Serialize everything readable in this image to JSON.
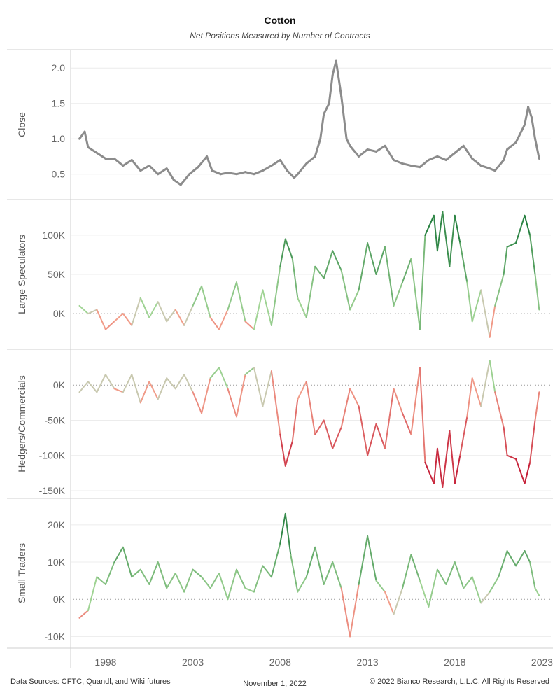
{
  "header": {
    "title": "Cotton",
    "subtitle": "Net Positions Measured by Number of Contracts"
  },
  "footer": {
    "sources": "Data Sources: CFTC, Quandl, and Wiki futures",
    "date": "November 1, 2022",
    "copyright": "© 2022 Bianco Research, L.L.C. All Rights Reserved"
  },
  "colors": {
    "close_line": "#8c8c8c",
    "positive_strong": "#1e7a3a",
    "positive_weak": "#a8d99a",
    "negative_weak": "#f4a58f",
    "negative_strong": "#c0102e",
    "neutral": "#c9c9b0",
    "grid": "#ececec",
    "zero_line": "#999999"
  },
  "chart_data": {
    "type": "line",
    "x_axis": {
      "tick_labels": [
        "1998",
        "2003",
        "2008",
        "2013",
        "2018",
        "2023"
      ],
      "range": [
        1996.0,
        2023.5
      ]
    },
    "panels": [
      {
        "ylabel": "Close",
        "ylim": [
          0.2,
          2.2
        ],
        "tick_labels": [
          "0.5",
          "1.0",
          "1.5",
          "2.0"
        ],
        "tick_values": [
          0.5,
          1.0,
          1.5,
          2.0
        ],
        "color_mode": "flat",
        "x": [
          1996.5,
          1996.8,
          1997.0,
          1997.5,
          1998.0,
          1998.5,
          1999.0,
          1999.5,
          2000.0,
          2000.5,
          2001.0,
          2001.5,
          2001.9,
          2002.3,
          2002.8,
          2003.3,
          2003.8,
          2004.1,
          2004.6,
          2005.0,
          2005.5,
          2006.0,
          2006.5,
          2007.0,
          2007.5,
          2008.0,
          2008.4,
          2008.8,
          2009.0,
          2009.5,
          2010.0,
          2010.3,
          2010.5,
          2010.8,
          2011.0,
          2011.2,
          2011.5,
          2011.8,
          2012.0,
          2012.5,
          2013.0,
          2013.5,
          2014.0,
          2014.5,
          2015.0,
          2015.5,
          2016.0,
          2016.5,
          2017.0,
          2017.5,
          2018.0,
          2018.5,
          2019.0,
          2019.5,
          2020.0,
          2020.3,
          2020.8,
          2021.0,
          2021.5,
          2022.0,
          2022.2,
          2022.4,
          2022.6,
          2022.83
        ],
        "values": [
          1.0,
          1.1,
          0.88,
          0.8,
          0.72,
          0.72,
          0.62,
          0.7,
          0.55,
          0.62,
          0.5,
          0.58,
          0.42,
          0.35,
          0.5,
          0.6,
          0.75,
          0.55,
          0.5,
          0.52,
          0.5,
          0.53,
          0.5,
          0.55,
          0.62,
          0.7,
          0.55,
          0.45,
          0.5,
          0.65,
          0.75,
          1.0,
          1.35,
          1.5,
          1.9,
          2.1,
          1.6,
          1.0,
          0.9,
          0.75,
          0.85,
          0.82,
          0.9,
          0.7,
          0.65,
          0.62,
          0.6,
          0.7,
          0.75,
          0.7,
          0.8,
          0.9,
          0.72,
          0.62,
          0.58,
          0.55,
          0.7,
          0.85,
          0.95,
          1.2,
          1.45,
          1.3,
          1.0,
          0.72
        ]
      },
      {
        "ylabel": "Large Speculators",
        "ylim": [
          -40000,
          140000
        ],
        "tick_labels": [
          "0K",
          "50K",
          "100K"
        ],
        "tick_values": [
          0,
          50000,
          100000
        ],
        "color_mode": "diverging",
        "color_scale": 120000,
        "x": [
          1996.5,
          1997.0,
          1997.5,
          1998.0,
          1998.5,
          1999.0,
          1999.5,
          2000.0,
          2000.5,
          2001.0,
          2001.5,
          2002.0,
          2002.5,
          2003.0,
          2003.5,
          2004.0,
          2004.5,
          2005.0,
          2005.5,
          2006.0,
          2006.5,
          2007.0,
          2007.5,
          2008.0,
          2008.3,
          2008.7,
          2009.0,
          2009.5,
          2010.0,
          2010.5,
          2011.0,
          2011.5,
          2012.0,
          2012.5,
          2013.0,
          2013.5,
          2014.0,
          2014.5,
          2015.0,
          2015.5,
          2016.0,
          2016.3,
          2016.8,
          2017.0,
          2017.3,
          2017.7,
          2018.0,
          2018.3,
          2018.7,
          2019.0,
          2019.5,
          2020.0,
          2020.3,
          2020.8,
          2021.0,
          2021.5,
          2022.0,
          2022.3,
          2022.6,
          2022.83
        ],
        "values": [
          10000,
          0,
          5000,
          -20000,
          -10000,
          0,
          -15000,
          20000,
          -5000,
          15000,
          -10000,
          5000,
          -15000,
          10000,
          35000,
          -5000,
          -20000,
          5000,
          40000,
          -10000,
          -20000,
          30000,
          -15000,
          60000,
          95000,
          70000,
          20000,
          -5000,
          60000,
          45000,
          80000,
          55000,
          5000,
          30000,
          90000,
          50000,
          85000,
          10000,
          40000,
          70000,
          -20000,
          100000,
          125000,
          80000,
          130000,
          60000,
          125000,
          90000,
          40000,
          -10000,
          30000,
          -30000,
          10000,
          50000,
          85000,
          90000,
          125000,
          100000,
          50000,
          5000
        ]
      },
      {
        "ylabel": "Hedgers/Commercials",
        "ylim": [
          -155000,
          45000
        ],
        "tick_labels": [
          "0K",
          "-50K",
          "-100K",
          "-150K"
        ],
        "tick_values": [
          0,
          -50000,
          -100000,
          -150000
        ],
        "color_mode": "diverging",
        "color_scale": 140000,
        "x": [
          1996.5,
          1997.0,
          1997.5,
          1998.0,
          1998.5,
          1999.0,
          1999.5,
          2000.0,
          2000.5,
          2001.0,
          2001.5,
          2002.0,
          2002.5,
          2003.0,
          2003.5,
          2004.0,
          2004.5,
          2005.0,
          2005.5,
          2006.0,
          2006.5,
          2007.0,
          2007.5,
          2008.0,
          2008.3,
          2008.7,
          2009.0,
          2009.5,
          2010.0,
          2010.5,
          2011.0,
          2011.5,
          2012.0,
          2012.5,
          2013.0,
          2013.5,
          2014.0,
          2014.5,
          2015.0,
          2015.5,
          2016.0,
          2016.3,
          2016.8,
          2017.0,
          2017.3,
          2017.7,
          2018.0,
          2018.3,
          2018.7,
          2019.0,
          2019.5,
          2020.0,
          2020.3,
          2020.8,
          2021.0,
          2021.5,
          2022.0,
          2022.3,
          2022.6,
          2022.83
        ],
        "values": [
          -10000,
          5000,
          -10000,
          15000,
          -5000,
          -10000,
          15000,
          -25000,
          5000,
          -20000,
          10000,
          -5000,
          15000,
          -10000,
          -40000,
          10000,
          25000,
          -5000,
          -45000,
          15000,
          25000,
          -30000,
          20000,
          -70000,
          -115000,
          -80000,
          -20000,
          5000,
          -70000,
          -50000,
          -90000,
          -60000,
          -5000,
          -30000,
          -100000,
          -55000,
          -90000,
          -5000,
          -40000,
          -70000,
          25000,
          -110000,
          -140000,
          -90000,
          -145000,
          -65000,
          -140000,
          -100000,
          -45000,
          10000,
          -30000,
          35000,
          -10000,
          -60000,
          -100000,
          -105000,
          -140000,
          -110000,
          -50000,
          -10000
        ]
      },
      {
        "ylabel": "Small Traders",
        "ylim": [
          -12000,
          26000
        ],
        "tick_labels": [
          "-10K",
          "0K",
          "10K",
          "20K"
        ],
        "tick_values": [
          -10000,
          0,
          10000,
          20000
        ],
        "color_mode": "diverging",
        "color_scale": 22000,
        "x": [
          1996.5,
          1997.0,
          1997.5,
          1998.0,
          1998.5,
          1999.0,
          1999.5,
          2000.0,
          2000.5,
          2001.0,
          2001.5,
          2002.0,
          2002.5,
          2003.0,
          2003.5,
          2004.0,
          2004.5,
          2005.0,
          2005.5,
          2006.0,
          2006.5,
          2007.0,
          2007.5,
          2008.0,
          2008.3,
          2008.6,
          2009.0,
          2009.5,
          2010.0,
          2010.5,
          2011.0,
          2011.5,
          2012.0,
          2012.5,
          2013.0,
          2013.5,
          2014.0,
          2014.5,
          2015.0,
          2015.5,
          2016.0,
          2016.5,
          2017.0,
          2017.5,
          2018.0,
          2018.5,
          2019.0,
          2019.5,
          2020.0,
          2020.5,
          2021.0,
          2021.5,
          2022.0,
          2022.3,
          2022.6,
          2022.83
        ],
        "values": [
          -5000,
          -3000,
          6000,
          4000,
          10000,
          14000,
          6000,
          8000,
          4000,
          10000,
          3000,
          7000,
          2000,
          8000,
          6000,
          3000,
          7000,
          0,
          8000,
          3000,
          2000,
          9000,
          6000,
          15000,
          23000,
          12000,
          2000,
          6000,
          14000,
          4000,
          10000,
          3000,
          -10000,
          4000,
          17000,
          5000,
          2000,
          -4000,
          3000,
          12000,
          5000,
          -2000,
          8000,
          4000,
          10000,
          3000,
          6000,
          -1000,
          2000,
          6000,
          13000,
          9000,
          13000,
          10000,
          3000,
          1000
        ]
      }
    ]
  }
}
